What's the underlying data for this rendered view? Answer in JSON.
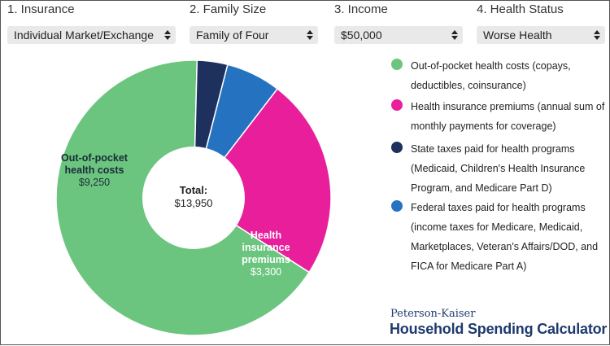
{
  "controls": [
    {
      "label": "1. Insurance",
      "value": "Individual Market/Exchange"
    },
    {
      "label": "2. Family Size",
      "value": "Family of Four"
    },
    {
      "label": "3. Income",
      "value": "$50,000"
    },
    {
      "label": "4. Health Status",
      "value": "Worse Health"
    }
  ],
  "chart_data": {
    "type": "pie",
    "total_label": "Total:",
    "total_value": "$13,950",
    "slices": [
      {
        "name": "Out-of-pocket health costs",
        "value": 9250,
        "color": "#6cc57e",
        "label": "Out-of-pocket health costs",
        "value_label": "$9,250"
      },
      {
        "name": "State taxes paid for health programs",
        "value": 500,
        "color": "#1e315e",
        "label": "",
        "value_label": ""
      },
      {
        "name": "Federal taxes paid for health programs",
        "value": 900,
        "color": "#2573c0",
        "label": "",
        "value_label": ""
      },
      {
        "name": "Health insurance premiums",
        "value": 3300,
        "color": "#e81e9b",
        "label": "Health insurance premiums",
        "value_label": "$3,300"
      }
    ]
  },
  "legend": [
    {
      "color": "#6cc57e",
      "text": "Out-of-pocket health costs (copays, deductibles, coinsurance)"
    },
    {
      "color": "#e81e9b",
      "text": "Health insurance premiums (annual sum of monthly payments for coverage)"
    },
    {
      "color": "#1e315e",
      "text": "State taxes paid for health programs (Medicaid, Children's Health Insurance Program, and Medicare Part D)"
    },
    {
      "color": "#2573c0",
      "text": "Federal taxes paid for health programs (income taxes for Medicare, Medicaid, Marketplaces, Veteran's Affairs/DOD, and FICA for Medicare Part A)"
    }
  ],
  "brand": {
    "top": "Peterson-Kaiser",
    "bottom": "Household Spending Calculator"
  }
}
